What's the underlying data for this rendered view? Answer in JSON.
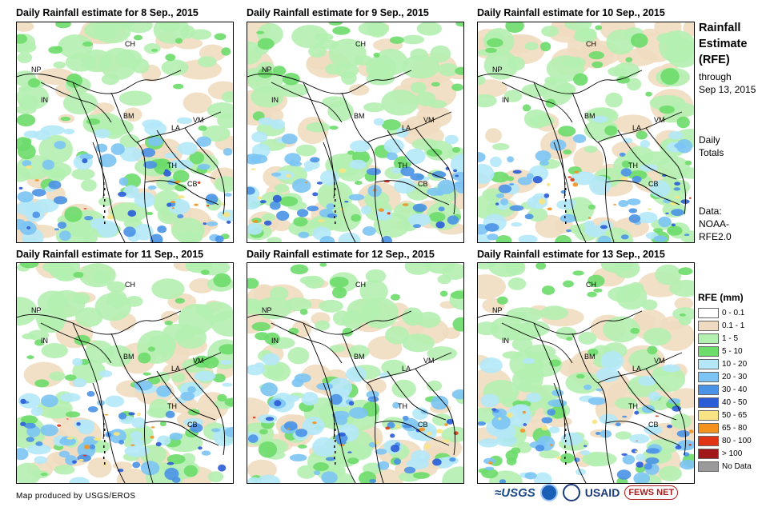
{
  "panels": [
    {
      "title": "Daily Rainfall estimate for 8 Sep., 2015",
      "countries": [
        "CH",
        "NP",
        "IN",
        "BM",
        "VM",
        "LA",
        "TH",
        "CB"
      ]
    },
    {
      "title": "Daily Rainfall estimate for 9 Sep., 2015",
      "countries": [
        "CH",
        "NP",
        "IN",
        "BM",
        "VM",
        "LA",
        "TH",
        "CB"
      ]
    },
    {
      "title": "Daily Rainfall estimate for 10 Sep., 2015",
      "countries": [
        "CH",
        "NP",
        "IN",
        "BM",
        "VM",
        "LA",
        "TH",
        "CB"
      ]
    },
    {
      "title": "Daily Rainfall estimate for 11 Sep., 2015",
      "countries": [
        "CH",
        "NP",
        "IN",
        "BM",
        "VM",
        "LA",
        "TH",
        "CB"
      ]
    },
    {
      "title": "Daily Rainfall estimate for 12 Sep., 2015",
      "countries": [
        "CH",
        "NP",
        "IN",
        "BM",
        "VM",
        "LA",
        "TH",
        "CB"
      ]
    },
    {
      "title": "Daily Rainfall estimate for 13 Sep., 2015",
      "countries": [
        "CH",
        "NP",
        "IN",
        "BM",
        "VM",
        "LA",
        "TH",
        "CB"
      ]
    }
  ],
  "sidebar": {
    "title_lines": [
      "Rainfall",
      "Estimate",
      "(RFE)"
    ],
    "through_lines": [
      "through",
      "Sep 13, 2015"
    ],
    "totals_lines": [
      "Daily",
      "Totals"
    ],
    "data_lines": [
      "Data:",
      "NOAA-",
      "RFE2.0"
    ]
  },
  "legend": {
    "title": "RFE (mm)",
    "items": [
      {
        "label": "0 - 0.1",
        "color": "#ffffff"
      },
      {
        "label": "0.1 - 1",
        "color": "#efdcc0"
      },
      {
        "label": "1 - 5",
        "color": "#b4f0b0"
      },
      {
        "label": "5 - 10",
        "color": "#6ddc6a"
      },
      {
        "label": "10 - 20",
        "color": "#b4e8f8"
      },
      {
        "label": "20 - 30",
        "color": "#7cc4f4"
      },
      {
        "label": "30 - 40",
        "color": "#4a92e6"
      },
      {
        "label": "40 - 50",
        "color": "#2a5cd6"
      },
      {
        "label": "50 - 65",
        "color": "#f8e484"
      },
      {
        "label": "65 - 80",
        "color": "#f4921e"
      },
      {
        "label": "80 - 100",
        "color": "#e03414"
      },
      {
        "label": "> 100",
        "color": "#a01818"
      },
      {
        "label": "No Data",
        "color": "#9a9a9a"
      }
    ]
  },
  "footer": {
    "credit": "Map produced by USGS/EROS"
  },
  "logos": {
    "usgs": "≈USGS",
    "usaid": "USAID",
    "fews": "FEWS NET"
  }
}
